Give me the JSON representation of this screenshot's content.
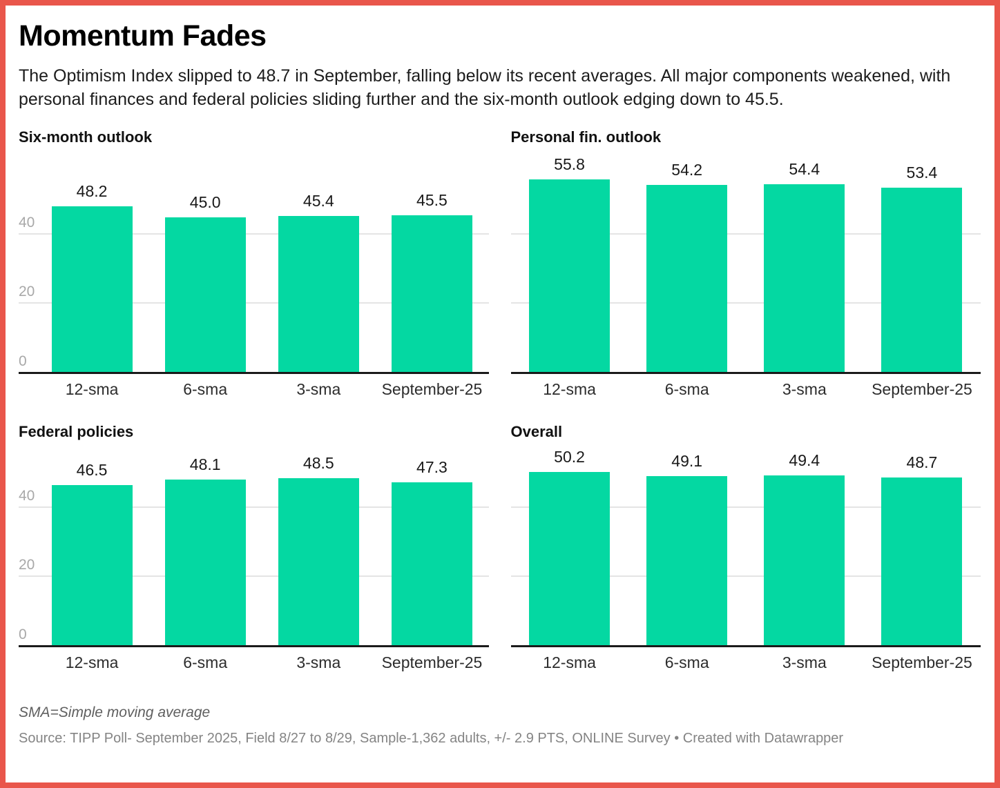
{
  "header": {
    "title": "Momentum Fades",
    "description": "The Optimism Index slipped to 48.7 in September, falling below its recent averages. All major components weakened, with personal finances and federal policies sliding further and the six-month outlook edging down to 45.5."
  },
  "colors": {
    "bar": "#04d8a2",
    "border": "#e9564b",
    "grid": "#e4e4e4",
    "axis_line": "#1a1a1a",
    "tick_label": "#a8a8a8"
  },
  "chart_data": [
    {
      "type": "bar",
      "title": "Six-month outlook",
      "categories": [
        "12-sma",
        "6-sma",
        "3-sma",
        "September-25"
      ],
      "values": [
        48.2,
        45.0,
        45.4,
        45.5
      ],
      "value_labels": [
        "48.2",
        "45.0",
        "45.4",
        "45.5"
      ],
      "xlabel": "",
      "ylabel": "",
      "ylim": [
        0,
        58
      ],
      "yticks": [
        0,
        20,
        40
      ],
      "y_ticks_visible": true,
      "grid": true,
      "legend": "none"
    },
    {
      "type": "bar",
      "title": "Personal fin. outlook",
      "categories": [
        "12-sma",
        "6-sma",
        "3-sma",
        "September-25"
      ],
      "values": [
        55.8,
        54.2,
        54.4,
        53.4
      ],
      "value_labels": [
        "55.8",
        "54.2",
        "54.4",
        "53.4"
      ],
      "xlabel": "",
      "ylabel": "",
      "ylim": [
        0,
        58
      ],
      "yticks": [
        0,
        20,
        40
      ],
      "y_ticks_visible": false,
      "grid": true,
      "legend": "none"
    },
    {
      "type": "bar",
      "title": "Federal policies",
      "categories": [
        "12-sma",
        "6-sma",
        "3-sma",
        "September-25"
      ],
      "values": [
        46.5,
        48.1,
        48.5,
        47.3
      ],
      "value_labels": [
        "46.5",
        "48.1",
        "48.5",
        "47.3"
      ],
      "xlabel": "",
      "ylabel": "",
      "ylim": [
        0,
        52
      ],
      "yticks": [
        0,
        20,
        40
      ],
      "y_ticks_visible": true,
      "grid": true,
      "legend": "none"
    },
    {
      "type": "bar",
      "title": "Overall",
      "categories": [
        "12-sma",
        "6-sma",
        "3-sma",
        "September-25"
      ],
      "values": [
        50.2,
        49.1,
        49.4,
        48.7
      ],
      "value_labels": [
        "50.2",
        "49.1",
        "49.4",
        "48.7"
      ],
      "xlabel": "",
      "ylabel": "",
      "ylim": [
        0,
        52
      ],
      "yticks": [
        0,
        20,
        40
      ],
      "y_ticks_visible": false,
      "grid": true,
      "legend": "none"
    }
  ],
  "footer": {
    "note": "SMA=Simple moving average",
    "source_line": "Source: TIPP Poll- September 2025, Field 8/27 to 8/29, Sample-1,362 adults, +/- 2.9 PTS, ONLINE Survey • Created with Datawrapper"
  }
}
